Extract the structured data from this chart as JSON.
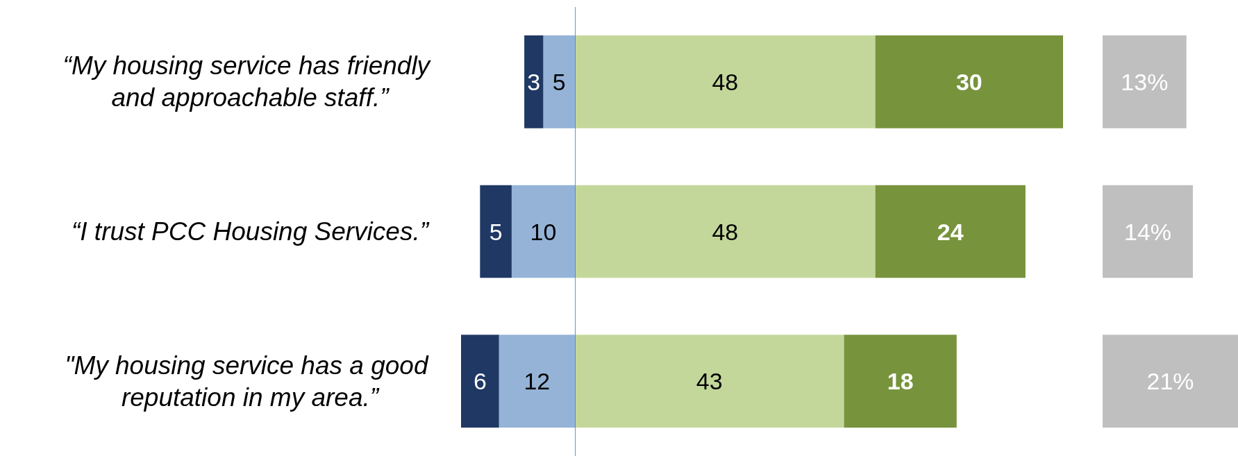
{
  "chart_data": [
    {
      "type": "bar",
      "orientation": "horizontal",
      "stacked": true,
      "grid": false,
      "tick_labels": "y",
      "data_labels": true,
      "categories": [
        "“My housing service has friendly and approachable staff.”",
        "“I trust PCC Housing Services.”",
        "\"My housing service has a good reputation in my area.”"
      ],
      "xlim": [
        18,
        0
      ],
      "series": [
        {
          "color": "#95b3d7",
          "values": [
            5,
            10,
            12
          ]
        },
        {
          "color": "#1f3864",
          "values": [
            3,
            5,
            6
          ]
        }
      ]
    },
    {
      "type": "bar",
      "orientation": "horizontal",
      "stacked": true,
      "grid": false,
      "tick_labels": false,
      "data_labels": true,
      "categories": [
        null,
        null,
        null
      ],
      "series": [
        {
          "color": "#c4d79b",
          "values": [
            48,
            48,
            43
          ]
        },
        {
          "color": "#77933c",
          "values": [
            30,
            24,
            18
          ]
        }
      ],
      "ref_lines": [
        {
          "axis": "x",
          "value": 0,
          "color": "#2e75b6"
        }
      ]
    },
    {
      "type": "bar",
      "orientation": "horizontal",
      "grid": false,
      "tick_labels": false,
      "categories": [
        null,
        null,
        null
      ],
      "series": [
        {
          "color": "#bfbfbf",
          "values": [
            13,
            14,
            21
          ],
          "value_labels": [
            "13%",
            "14%",
            "21%"
          ]
        }
      ]
    }
  ]
}
